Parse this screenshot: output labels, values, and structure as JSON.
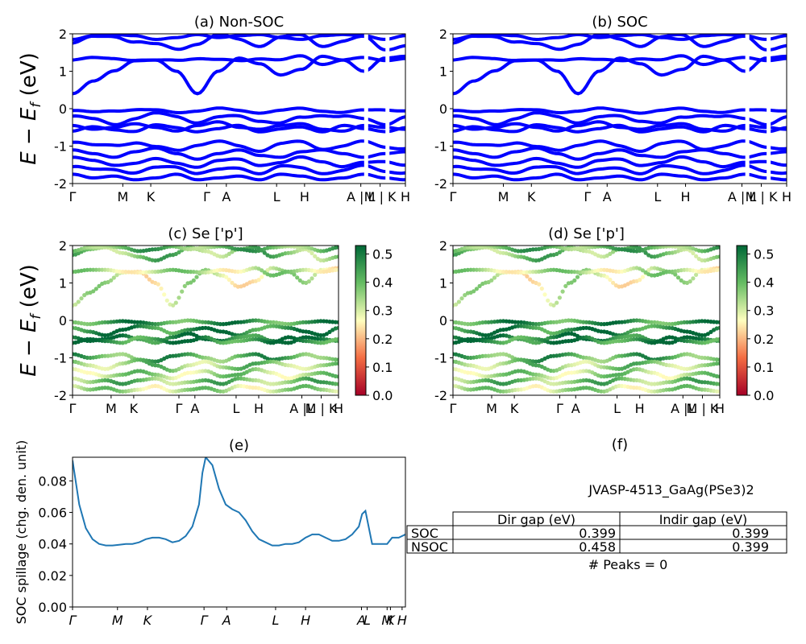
{
  "figure": {
    "y_label_text": "E − E_f (eV)",
    "spillage_y_label": "SOC spillage (chg. den. unit)"
  },
  "chart_data": [
    {
      "id": "a",
      "type": "line",
      "title": "(a) Non-SOC",
      "ylabel": "E − E_f (eV)",
      "ylim": [
        -2,
        2
      ],
      "yticks": [
        -2,
        -1,
        0,
        1,
        2
      ],
      "xlim": [
        0,
        1
      ],
      "color": "#0000ff",
      "kpoints": [
        {
          "label": "Γ",
          "pos": 0.0
        },
        {
          "label": "M",
          "pos": 0.151
        },
        {
          "label": "K",
          "pos": 0.235
        },
        {
          "label": "Γ",
          "pos": 0.403
        },
        {
          "label": "A",
          "pos": 0.462
        },
        {
          "label": "L",
          "pos": 0.613
        },
        {
          "label": "H",
          "pos": 0.697
        },
        {
          "label": "A | L",
          "pos": 0.866
        },
        {
          "label": "M | K",
          "pos": 0.924
        },
        {
          "label": "H",
          "pos": 1.0
        }
      ],
      "bands_approx": [
        [
          0.4,
          0.74,
          1.01,
          1.28,
          1.3,
          1.0,
          0.4,
          1.0,
          1.35,
          1.2,
          0.9,
          1.05,
          1.4,
          1.3,
          1.0,
          1.35,
          1.4
        ],
        [
          1.3,
          1.35,
          1.35,
          1.3,
          1.28,
          1.3,
          1.35,
          1.3,
          1.28,
          1.35,
          1.3,
          1.4,
          1.2,
          1.3,
          1.35,
          1.3,
          1.35
        ],
        [
          1.75,
          1.9,
          1.95,
          1.8,
          1.7,
          1.6,
          1.75,
          1.95,
          1.85,
          1.7,
          1.9,
          1.95,
          1.7,
          1.8,
          1.9,
          1.6,
          1.7
        ],
        [
          1.85,
          1.95,
          1.98,
          1.95,
          1.85,
          1.9,
          1.98,
          1.9,
          1.95,
          1.98,
          1.9,
          1.85,
          1.95,
          1.98,
          1.95,
          1.85,
          1.95
        ],
        [
          -0.05,
          -0.1,
          -0.05,
          -0.02,
          -0.05,
          -0.1,
          -0.05,
          0.0,
          -0.05,
          -0.1,
          -0.05,
          0.0,
          -0.05,
          -0.1,
          -0.05,
          -0.02,
          -0.05
        ],
        [
          -0.2,
          -0.3,
          -0.4,
          -0.25,
          -0.15,
          -0.2,
          -0.35,
          -0.25,
          -0.2,
          -0.3,
          -0.4,
          -0.25,
          -0.15,
          -0.2,
          -0.3,
          -0.4,
          -0.2
        ],
        [
          -0.45,
          -0.55,
          -0.5,
          -0.4,
          -0.5,
          -0.6,
          -0.45,
          -0.35,
          -0.5,
          -0.55,
          -0.45,
          -0.4,
          -0.55,
          -0.6,
          -0.45,
          -0.5,
          -0.55
        ],
        [
          -0.6,
          -0.5,
          -0.55,
          -0.6,
          -0.45,
          -0.5,
          -0.6,
          -0.55,
          -0.45,
          -0.6,
          -0.55,
          -0.5,
          -0.6,
          -0.45,
          -0.55,
          -0.6,
          -0.5
        ],
        [
          -0.9,
          -1.0,
          -0.95,
          -0.9,
          -1.05,
          -1.1,
          -0.95,
          -0.9,
          -1.0,
          -1.1,
          -0.95,
          -0.9,
          -1.05,
          -1.0,
          -0.9,
          -1.0,
          -1.05
        ],
        [
          -1.1,
          -1.2,
          -1.3,
          -1.15,
          -1.05,
          -1.2,
          -1.35,
          -1.2,
          -1.1,
          -1.25,
          -1.3,
          -1.15,
          -1.1,
          -1.2,
          -1.3,
          -1.2,
          -1.15
        ],
        [
          -1.3,
          -1.4,
          -1.5,
          -1.45,
          -1.35,
          -1.45,
          -1.55,
          -1.4,
          -1.35,
          -1.5,
          -1.45,
          -1.3,
          -1.4,
          -1.55,
          -1.45,
          -1.4,
          -1.5
        ],
        [
          -1.55,
          -1.65,
          -1.6,
          -1.7,
          -1.6,
          -1.55,
          -1.7,
          -1.65,
          -1.6,
          -1.7,
          -1.55,
          -1.6,
          -1.7,
          -1.65,
          -1.55,
          -1.65,
          -1.7
        ],
        [
          -1.75,
          -1.85,
          -1.8,
          -1.9,
          -1.85,
          -1.75,
          -1.9,
          -1.85,
          -1.8,
          -1.9,
          -1.75,
          -1.8,
          -1.9,
          -1.85,
          -1.75,
          -1.85,
          -1.9
        ]
      ]
    },
    {
      "id": "b",
      "type": "line",
      "title": "(b) SOC",
      "ylabel": "",
      "ylim": [
        -2,
        2
      ],
      "yticks": [
        -2,
        -1,
        0,
        1,
        2
      ],
      "xlim": [
        0,
        1
      ],
      "color": "#0000ff",
      "kpoints": [
        {
          "label": "Γ",
          "pos": 0.0
        },
        {
          "label": "M",
          "pos": 0.151
        },
        {
          "label": "K",
          "pos": 0.235
        },
        {
          "label": "Γ",
          "pos": 0.403
        },
        {
          "label": "A",
          "pos": 0.462
        },
        {
          "label": "L",
          "pos": 0.613
        },
        {
          "label": "H",
          "pos": 0.697
        },
        {
          "label": "A | L",
          "pos": 0.866
        },
        {
          "label": "M | K",
          "pos": 0.924
        },
        {
          "label": "H",
          "pos": 1.0
        }
      ],
      "bands_approx": [
        [
          0.4,
          0.74,
          1.01,
          1.28,
          1.3,
          1.0,
          0.4,
          1.0,
          1.35,
          1.2,
          0.9,
          1.05,
          1.4,
          1.3,
          1.0,
          1.35,
          1.4
        ],
        [
          1.3,
          1.35,
          1.35,
          1.3,
          1.28,
          1.3,
          1.35,
          1.3,
          1.28,
          1.35,
          1.3,
          1.4,
          1.2,
          1.3,
          1.35,
          1.3,
          1.35
        ],
        [
          1.75,
          1.9,
          1.95,
          1.8,
          1.7,
          1.6,
          1.75,
          1.95,
          1.85,
          1.7,
          1.9,
          1.95,
          1.7,
          1.8,
          1.9,
          1.6,
          1.7
        ],
        [
          1.85,
          1.95,
          1.98,
          1.95,
          1.85,
          1.9,
          1.98,
          1.9,
          1.95,
          1.98,
          1.9,
          1.85,
          1.95,
          1.98,
          1.95,
          1.85,
          1.95
        ],
        [
          -0.05,
          -0.1,
          -0.05,
          -0.02,
          -0.05,
          -0.1,
          -0.05,
          0.0,
          -0.05,
          -0.1,
          -0.05,
          0.0,
          -0.05,
          -0.1,
          -0.05,
          -0.02,
          -0.05
        ],
        [
          -0.2,
          -0.3,
          -0.4,
          -0.25,
          -0.15,
          -0.2,
          -0.35,
          -0.25,
          -0.2,
          -0.3,
          -0.4,
          -0.25,
          -0.15,
          -0.2,
          -0.3,
          -0.4,
          -0.2
        ],
        [
          -0.45,
          -0.55,
          -0.5,
          -0.4,
          -0.5,
          -0.6,
          -0.45,
          -0.35,
          -0.5,
          -0.55,
          -0.45,
          -0.4,
          -0.55,
          -0.6,
          -0.45,
          -0.5,
          -0.55
        ],
        [
          -0.6,
          -0.5,
          -0.55,
          -0.6,
          -0.45,
          -0.5,
          -0.6,
          -0.55,
          -0.45,
          -0.6,
          -0.55,
          -0.5,
          -0.6,
          -0.45,
          -0.55,
          -0.6,
          -0.5
        ],
        [
          -0.9,
          -1.0,
          -0.95,
          -0.9,
          -1.05,
          -1.1,
          -0.95,
          -0.9,
          -1.0,
          -1.1,
          -0.95,
          -0.9,
          -1.05,
          -1.0,
          -0.9,
          -1.0,
          -1.05
        ],
        [
          -1.1,
          -1.2,
          -1.3,
          -1.15,
          -1.05,
          -1.2,
          -1.35,
          -1.2,
          -1.1,
          -1.25,
          -1.3,
          -1.15,
          -1.1,
          -1.2,
          -1.3,
          -1.2,
          -1.15
        ],
        [
          -1.3,
          -1.4,
          -1.5,
          -1.45,
          -1.35,
          -1.45,
          -1.55,
          -1.4,
          -1.35,
          -1.5,
          -1.45,
          -1.3,
          -1.4,
          -1.55,
          -1.45,
          -1.4,
          -1.5
        ],
        [
          -1.55,
          -1.65,
          -1.6,
          -1.7,
          -1.6,
          -1.55,
          -1.7,
          -1.65,
          -1.6,
          -1.7,
          -1.55,
          -1.6,
          -1.7,
          -1.65,
          -1.55,
          -1.65,
          -1.7
        ],
        [
          -1.75,
          -1.85,
          -1.8,
          -1.9,
          -1.85,
          -1.75,
          -1.9,
          -1.85,
          -1.8,
          -1.9,
          -1.75,
          -1.8,
          -1.9,
          -1.85,
          -1.75,
          -1.85,
          -1.9
        ]
      ]
    },
    {
      "id": "c",
      "type": "scatter",
      "title": "(c)  Se ['p']",
      "ylabel": "E − E_f (eV)",
      "ylim": [
        -2,
        2
      ],
      "yticks": [
        -2,
        -1,
        0,
        1,
        2
      ],
      "xlim": [
        0,
        1
      ],
      "colormap": "RdYlGn",
      "colorbar_range": [
        0.0,
        0.53
      ],
      "colorbar_ticks": [
        "0.0",
        "0.1",
        "0.2",
        "0.3",
        "0.4",
        "0.5"
      ],
      "kpoints": [
        {
          "label": "Γ",
          "pos": 0.0
        },
        {
          "label": "M",
          "pos": 0.145
        },
        {
          "label": "K",
          "pos": 0.23
        },
        {
          "label": "Γ",
          "pos": 0.4
        },
        {
          "label": "A",
          "pos": 0.46
        },
        {
          "label": "L",
          "pos": 0.615
        },
        {
          "label": "H",
          "pos": 0.7
        },
        {
          "label": "A |L",
          "pos": 0.862
        },
        {
          "label": "M | K",
          "pos": 0.935
        },
        {
          "label": "H",
          "pos": 1.0
        }
      ],
      "bands_approx_weight": [
        0.3,
        0.32,
        0.38,
        0.4,
        0.45,
        0.48,
        0.5,
        0.47,
        0.42,
        0.36,
        0.34,
        0.38,
        0.33
      ]
    },
    {
      "id": "d",
      "type": "scatter",
      "title": "(d) Se ['p']",
      "ylabel": "",
      "ylim": [
        -2,
        2
      ],
      "yticks": [
        -2,
        -1,
        0,
        1,
        2
      ],
      "xlim": [
        0,
        1
      ],
      "colormap": "RdYlGn",
      "colorbar_range": [
        0.0,
        0.53
      ],
      "colorbar_ticks": [
        "0.0",
        "0.1",
        "0.2",
        "0.3",
        "0.4",
        "0.5"
      ],
      "kpoints": [
        {
          "label": "Γ",
          "pos": 0.0
        },
        {
          "label": "M",
          "pos": 0.145
        },
        {
          "label": "K",
          "pos": 0.23
        },
        {
          "label": "Γ",
          "pos": 0.4
        },
        {
          "label": "A",
          "pos": 0.46
        },
        {
          "label": "L",
          "pos": 0.615
        },
        {
          "label": "H",
          "pos": 0.7
        },
        {
          "label": "A |L",
          "pos": 0.862
        },
        {
          "label": "M | K",
          "pos": 0.935
        },
        {
          "label": "H",
          "pos": 1.0
        }
      ],
      "bands_approx_weight": [
        0.3,
        0.32,
        0.38,
        0.4,
        0.45,
        0.48,
        0.5,
        0.47,
        0.42,
        0.36,
        0.34,
        0.38,
        0.33
      ]
    },
    {
      "id": "e",
      "type": "line",
      "title": "(e)",
      "ylabel": "SOC spillage (chg. den. unit)",
      "ylim": [
        0.0,
        0.095
      ],
      "yticks": [
        "0.00",
        "0.02",
        "0.04",
        "0.06",
        "0.08"
      ],
      "xlim": [
        0,
        1
      ],
      "color": "#1f77b4",
      "kpoints": [
        {
          "label": "Γ",
          "pos": 0.0
        },
        {
          "label": "M",
          "pos": 0.135
        },
        {
          "label": "K",
          "pos": 0.225
        },
        {
          "label": "Γ",
          "pos": 0.395
        },
        {
          "label": "A",
          "pos": 0.463
        },
        {
          "label": "L",
          "pos": 0.61
        },
        {
          "label": "H",
          "pos": 0.7
        },
        {
          "label": "A",
          "pos": 0.868
        },
        {
          "label": "L",
          "pos": 0.885
        },
        {
          "label": "M",
          "pos": 0.945
        },
        {
          "label": "K",
          "pos": 0.955
        },
        {
          "label": "H",
          "pos": 0.99
        }
      ],
      "x": [
        0.0,
        0.02,
        0.04,
        0.06,
        0.08,
        0.1,
        0.12,
        0.14,
        0.16,
        0.18,
        0.2,
        0.22,
        0.24,
        0.26,
        0.28,
        0.3,
        0.32,
        0.34,
        0.36,
        0.38,
        0.39,
        0.4,
        0.42,
        0.44,
        0.46,
        0.48,
        0.5,
        0.52,
        0.54,
        0.56,
        0.58,
        0.6,
        0.62,
        0.64,
        0.66,
        0.68,
        0.7,
        0.72,
        0.74,
        0.76,
        0.78,
        0.8,
        0.82,
        0.84,
        0.86,
        0.87,
        0.88,
        0.9,
        0.92,
        0.94,
        0.945,
        0.96,
        0.98,
        1.0
      ],
      "y": [
        0.093,
        0.065,
        0.05,
        0.043,
        0.04,
        0.039,
        0.039,
        0.0395,
        0.04,
        0.04,
        0.041,
        0.043,
        0.044,
        0.044,
        0.043,
        0.041,
        0.042,
        0.045,
        0.051,
        0.065,
        0.085,
        0.095,
        0.09,
        0.075,
        0.065,
        0.062,
        0.06,
        0.055,
        0.048,
        0.043,
        0.041,
        0.039,
        0.039,
        0.04,
        0.04,
        0.041,
        0.044,
        0.046,
        0.046,
        0.044,
        0.042,
        0.042,
        0.043,
        0.046,
        0.051,
        0.059,
        0.061,
        0.04,
        0.04,
        0.04,
        0.04,
        0.044,
        0.044,
        0.046
      ]
    }
  ],
  "info_panel": {
    "title": "(f)",
    "material": "JVASP-4513_GaAg(PSe3)2",
    "table": {
      "col_headers": [
        "Dir gap (eV)",
        "Indir gap (eV)"
      ],
      "rows": [
        {
          "label": "SOC",
          "dir": "0.399",
          "indir": "0.399"
        },
        {
          "label": "NSOC",
          "dir": "0.458",
          "indir": "0.399"
        }
      ]
    },
    "peaks_text": "# Peaks = 0"
  }
}
